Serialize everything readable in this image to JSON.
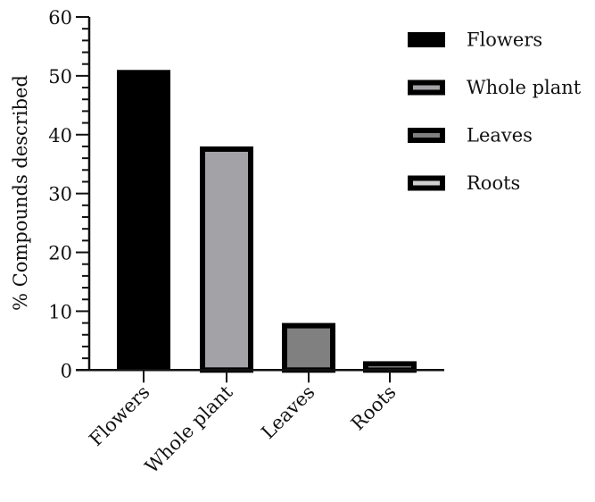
{
  "chart_data": {
    "type": "bar",
    "categories": [
      "Flowers",
      "Whole plant",
      "Leaves",
      "Roots"
    ],
    "values": [
      51,
      38,
      8,
      1.5
    ],
    "title": "",
    "xlabel": "",
    "ylabel": "% Compounds described",
    "ylim": [
      0,
      60
    ],
    "yticks": [
      "0",
      "10",
      "20",
      "30",
      "40",
      "50",
      "60"
    ],
    "grid": false,
    "legend": {
      "placement": "top-right",
      "entries": [
        "Flowers",
        "Whole plant",
        "Leaves",
        "Roots"
      ]
    },
    "colors": [
      "#000000",
      "#a3a3a7",
      "#808080",
      "#d0d0d0"
    ]
  }
}
